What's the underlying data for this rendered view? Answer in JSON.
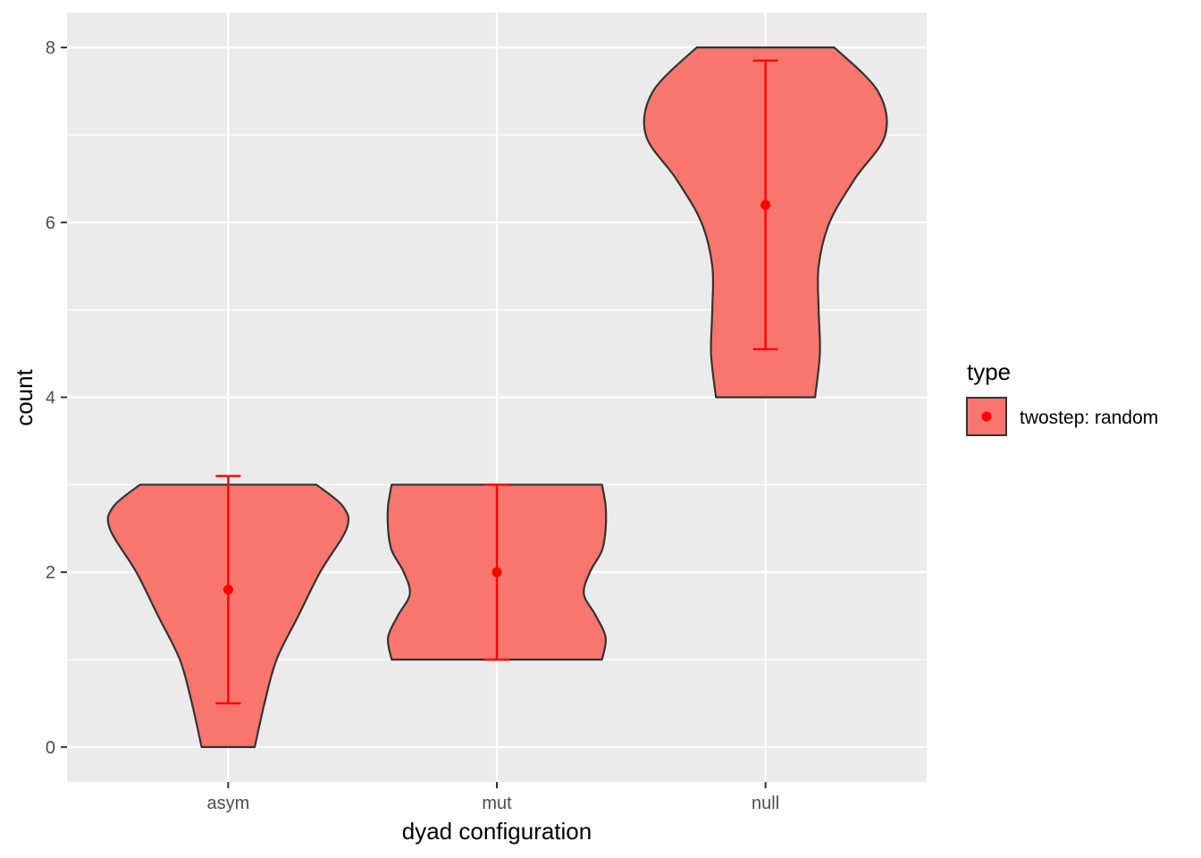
{
  "chart_data": {
    "type": "violin",
    "xlabel": "dyad configuration",
    "ylabel": "count",
    "categories": [
      "asym",
      "mut",
      "null"
    ],
    "ylim": [
      -0.4,
      8.4
    ],
    "yticks": [
      0,
      2,
      4,
      6,
      8
    ],
    "grid": true,
    "legend": {
      "title": "type",
      "position": "right",
      "entries": [
        {
          "label": "twostep: random",
          "fill": "#F8766D",
          "point_color": "#FF0000"
        }
      ]
    },
    "series": [
      {
        "name": "twostep: random",
        "groups": [
          {
            "category": "asym",
            "mean": 1.8,
            "error_low": 0.5,
            "error_high": 3.1,
            "violin_range": [
              0,
              3
            ],
            "violin_profile": [
              [
                0,
                0.22
              ],
              [
                0.5,
                0.3
              ],
              [
                1.0,
                0.4
              ],
              [
                1.5,
                0.58
              ],
              [
                2.0,
                0.76
              ],
              [
                2.5,
                0.98
              ],
              [
                2.75,
                0.95
              ],
              [
                3.0,
                0.73
              ]
            ]
          },
          {
            "category": "mut",
            "mean": 2.0,
            "error_low": 1.0,
            "error_high": 3.0,
            "violin_range": [
              1,
              3
            ],
            "violin_profile": [
              [
                1.0,
                0.87
              ],
              [
                1.25,
                0.9
              ],
              [
                1.5,
                0.82
              ],
              [
                1.75,
                0.72
              ],
              [
                2.0,
                0.77
              ],
              [
                2.25,
                0.87
              ],
              [
                2.5,
                0.9
              ],
              [
                2.75,
                0.9
              ],
              [
                3.0,
                0.87
              ]
            ]
          },
          {
            "category": "null",
            "mean": 6.2,
            "error_low": 4.55,
            "error_high": 7.85,
            "violin_range": [
              4,
              8
            ],
            "violin_profile": [
              [
                4.0,
                0.41
              ],
              [
                4.5,
                0.45
              ],
              [
                5.0,
                0.44
              ],
              [
                5.5,
                0.44
              ],
              [
                6.0,
                0.53
              ],
              [
                6.5,
                0.74
              ],
              [
                7.0,
                0.99
              ],
              [
                7.5,
                0.93
              ],
              [
                8.0,
                0.57
              ]
            ]
          }
        ]
      }
    ],
    "colors": {
      "panel_bg": "#EBEBEB",
      "grid": "#FFFFFF",
      "violin_fill": "#F8766D",
      "violin_stroke": "#333333",
      "errorbar": "#FF0000",
      "point": "#FF0000"
    }
  }
}
